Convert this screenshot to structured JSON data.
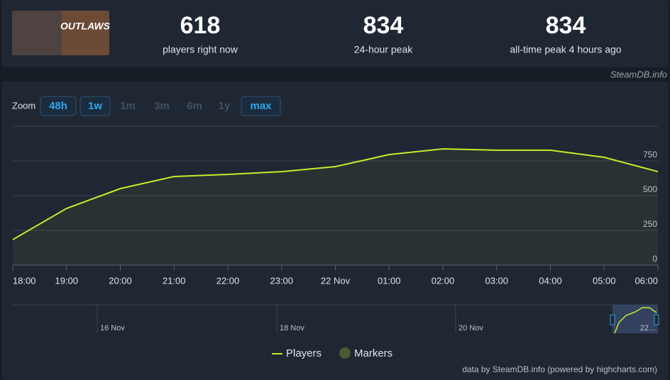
{
  "header": {
    "game_logo": "OUTLAWS",
    "stats": [
      {
        "value": "618",
        "label": "players right now"
      },
      {
        "value": "834",
        "label": "24-hour peak"
      },
      {
        "value": "834",
        "label": "all-time peak 4 hours ago"
      }
    ],
    "credit": "SteamDB.info"
  },
  "zoom": {
    "label": "Zoom",
    "buttons": [
      "48h",
      "1w",
      "1m",
      "3m",
      "6m",
      "1y",
      "max"
    ]
  },
  "chart_data": {
    "type": "line",
    "categories": [
      "18:00",
      "19:00",
      "20:00",
      "21:00",
      "22:00",
      "23:00",
      "22 Nov",
      "01:00",
      "02:00",
      "03:00",
      "04:00",
      "05:00",
      "06:00"
    ],
    "series": [
      {
        "name": "Players",
        "color": "#c6ec2a",
        "values": [
          184,
          408,
          551,
          638,
          653,
          673,
          709,
          796,
          837,
          827,
          827,
          776,
          673
        ]
      }
    ],
    "markers_label": "Markers",
    "markers_color": "#4a5a32",
    "ylim": [
      0,
      1000
    ],
    "yticks": [
      0,
      250,
      500,
      750
    ],
    "grid": true
  },
  "navigator": {
    "labels": [
      "16 Nov",
      "18 Nov",
      "20 Nov",
      "22..."
    ]
  },
  "footer": "data by SteamDB.info (powered by highcharts.com)"
}
